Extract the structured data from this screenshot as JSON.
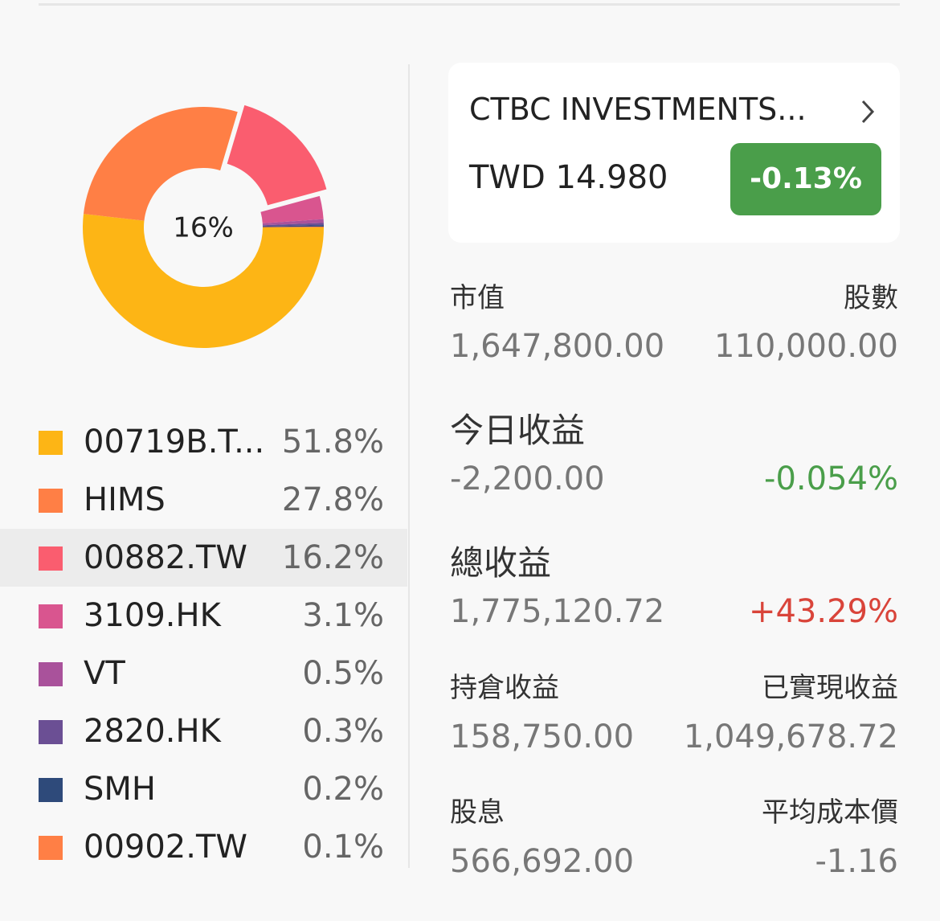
{
  "chart_data": {
    "type": "pie",
    "donut": true,
    "center_label": "16%",
    "categories": [
      "00719B.T...",
      "HIMS",
      "00882.TW",
      "3109.HK",
      "VT",
      "2820.HK",
      "SMH",
      "00902.TW"
    ],
    "values": [
      51.8,
      27.8,
      16.2,
      3.1,
      0.5,
      0.3,
      0.2,
      0.1
    ],
    "value_labels": [
      "51.8%",
      "27.8%",
      "16.2%",
      "3.1%",
      "0.5%",
      "0.3%",
      "0.2%",
      "0.1%"
    ],
    "colors": [
      "#fdb515",
      "#ff7f45",
      "#fa5d6f",
      "#d9558f",
      "#a9529b",
      "#6b4f94",
      "#2e4a7a",
      "#ff7f45"
    ],
    "highlight_index": 2
  },
  "quote": {
    "name": "CTBC INVESTMENTS...",
    "price": "TWD 14.980",
    "change": "-0.13%"
  },
  "stats": [
    {
      "labels": [
        "市值",
        "股數"
      ],
      "values": [
        "1,647,800.00",
        "110,000.00"
      ]
    },
    {
      "labels": [
        "今日收益"
      ],
      "values": [
        "-2,200.00",
        "-0.054%"
      ]
    },
    {
      "labels": [
        "總收益"
      ],
      "values": [
        "1,775,120.72",
        "+43.29%"
      ]
    },
    {
      "labels": [
        "持倉收益",
        "已實現收益"
      ],
      "values": [
        "158,750.00",
        "1,049,678.72"
      ]
    },
    {
      "labels": [
        "股息",
        "平均成本價"
      ],
      "values": [
        "566,692.00",
        "-1.16"
      ]
    }
  ]
}
